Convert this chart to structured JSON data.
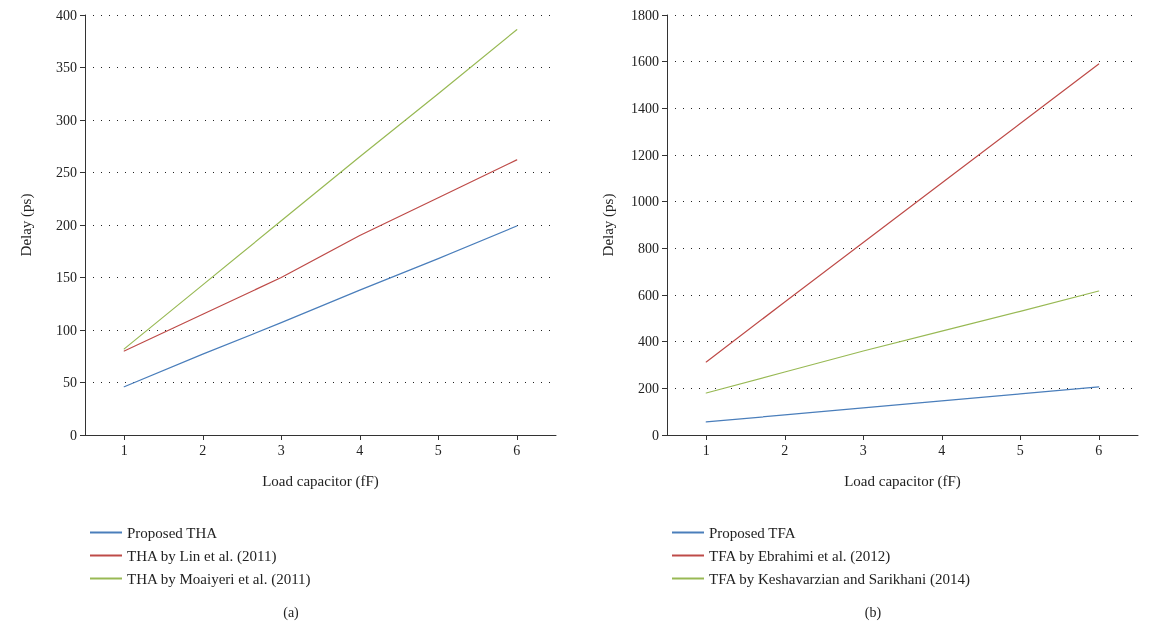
{
  "chart_data": [
    {
      "type": "line",
      "xlabel": "Load capacitor (fF)",
      "ylabel": "Delay (ps)",
      "x": [
        1,
        2,
        3,
        4,
        5,
        6
      ],
      "xlim": [
        0.5,
        6.5
      ],
      "xticks": [
        1,
        2,
        3,
        4,
        5,
        6
      ],
      "ylim": [
        0,
        400
      ],
      "yticks": [
        0,
        50,
        100,
        150,
        200,
        250,
        300,
        350,
        400
      ],
      "grid": "y",
      "legend": "bottom",
      "marker": "none",
      "line_style": "solid",
      "annotations": [
        "(a)"
      ],
      "series": [
        {
          "name": "Proposed THA",
          "color": "#4a7ebb",
          "values": [
            46,
            77,
            107,
            138,
            168,
            199
          ]
        },
        {
          "name": "THA by Lin et al. (2011)",
          "color": "#be4b48",
          "values": [
            80,
            115,
            150,
            190,
            226,
            262
          ]
        },
        {
          "name": "THA by Moaiyeri et al. (2011)",
          "color": "#98b954",
          "values": [
            82,
            143,
            204,
            265,
            325,
            386
          ]
        }
      ]
    },
    {
      "type": "line",
      "xlabel": "Load capacitor (fF)",
      "ylabel": "Delay (ps)",
      "x": [
        1,
        2,
        3,
        4,
        5,
        6
      ],
      "xlim": [
        0.5,
        6.5
      ],
      "xticks": [
        1,
        2,
        3,
        4,
        5,
        6
      ],
      "ylim": [
        0,
        1800
      ],
      "yticks": [
        0,
        200,
        400,
        600,
        800,
        1000,
        1200,
        1400,
        1600,
        1800
      ],
      "grid": "y",
      "legend": "bottom",
      "marker": "none",
      "line_style": "solid",
      "annotations": [
        "(b)"
      ],
      "series": [
        {
          "name": "Proposed TFA",
          "color": "#4a7ebb",
          "values": [
            56,
            86,
            116,
            146,
            176,
            206
          ]
        },
        {
          "name": "TFA by Ebrahimi et al. (2012)",
          "color": "#be4b48",
          "values": [
            313,
            570,
            825,
            1080,
            1335,
            1590
          ]
        },
        {
          "name": "TFA by Keshavarzian and Sarikhani (2014)",
          "color": "#98b954",
          "values": [
            180,
            270,
            360,
            445,
            530,
            617
          ]
        }
      ]
    }
  ]
}
